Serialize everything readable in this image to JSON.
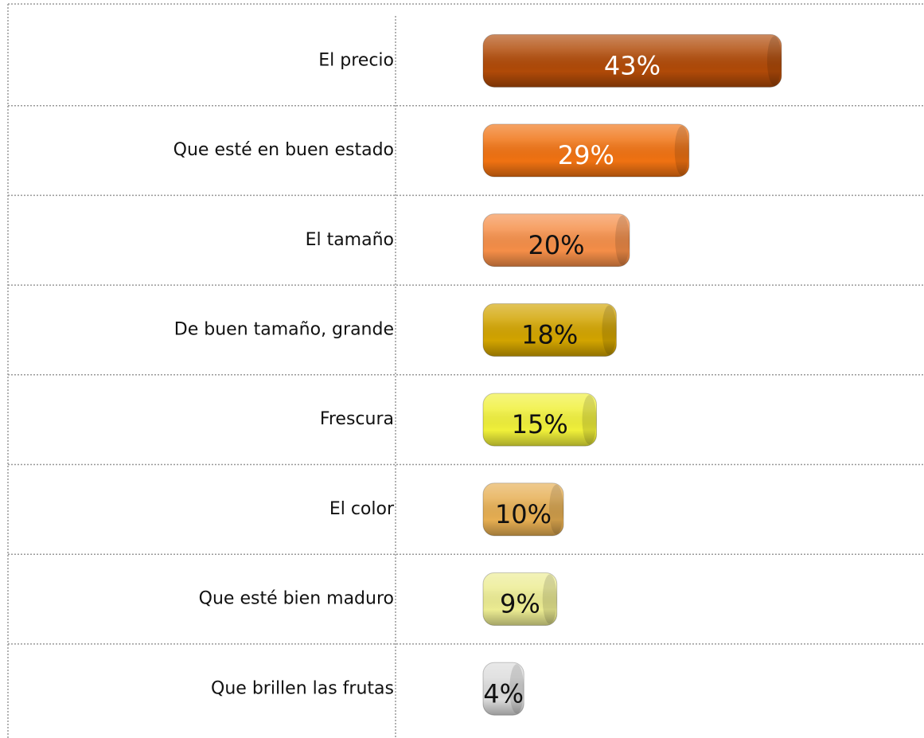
{
  "chart_data": {
    "type": "bar",
    "orientation": "horizontal",
    "categories": [
      "El precio",
      "Que esté en buen estado",
      "El tamaño",
      "De buen tamaño, grande",
      "Frescura",
      "El color",
      "Que esté bien maduro",
      "Que brillen las frutas"
    ],
    "values": [
      43,
      29,
      20,
      18,
      15,
      10,
      9,
      4
    ],
    "value_labels": [
      "43%",
      "29%",
      "20%",
      "18%",
      "15%",
      "10%",
      "9%",
      "4%"
    ],
    "colors": [
      "#b04a08",
      "#f07212",
      "#f58e48",
      "#d2a400",
      "#f0f03a",
      "#e6ae52",
      "#ecec92",
      "#dcdcdc"
    ],
    "label_colors": [
      "#ffffff",
      "#ffffff",
      "#111111",
      "#111111",
      "#111111",
      "#111111",
      "#111111",
      "#111111"
    ],
    "grid": true
  }
}
